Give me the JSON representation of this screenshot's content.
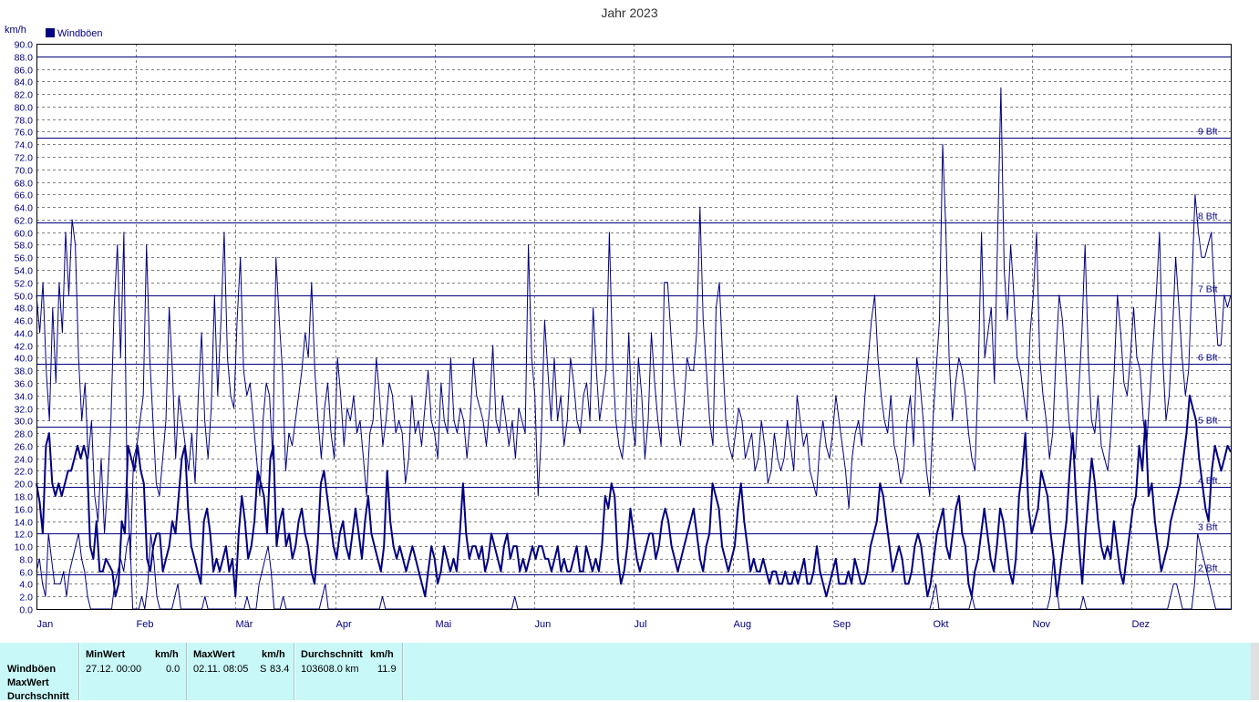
{
  "chart_data": {
    "type": "line",
    "title": "Jahr 2023",
    "ylabel": "km/h",
    "ylim": [
      0,
      90
    ],
    "ytick_step": 2,
    "grid": true,
    "legend": {
      "position": "top-left",
      "entries": [
        "Windböen"
      ]
    },
    "months": [
      "Jan",
      "Feb",
      "Mär",
      "Apr",
      "Mai",
      "Jun",
      "Jul",
      "Aug",
      "Sep",
      "Okt",
      "Nov",
      "Dez"
    ],
    "beaufort_lines": [
      {
        "label": "2 Bft",
        "value": 5.5
      },
      {
        "label": "3 Bft",
        "value": 12
      },
      {
        "label": "4 Bft",
        "value": 19.5
      },
      {
        "label": "5 Bft",
        "value": 29
      },
      {
        "label": "6 Bft",
        "value": 39
      },
      {
        "label": "7 Bft",
        "value": 50
      },
      {
        "label": "8 Bft",
        "value": 61.5
      },
      {
        "label": "9 Bft",
        "value": 75
      },
      {
        "label": "",
        "value": 88
      }
    ],
    "series": [
      {
        "name": "Windböen",
        "role": "max",
        "values": [
          50,
          44,
          52,
          38,
          30,
          48,
          36,
          52,
          44,
          60,
          50,
          62,
          58,
          40,
          30,
          36,
          24,
          30,
          18,
          14,
          24,
          12,
          20,
          30,
          48,
          58,
          40,
          60,
          20,
          8,
          24,
          26,
          30,
          34,
          58,
          40,
          30,
          20,
          18,
          24,
          30,
          48,
          38,
          24,
          34,
          30,
          26,
          22,
          28,
          20,
          34,
          44,
          30,
          24,
          32,
          50,
          34,
          46,
          60,
          40,
          34,
          32,
          46,
          56,
          38,
          34,
          36,
          30,
          24,
          18,
          30,
          36,
          34,
          24,
          56,
          46,
          38,
          22,
          28,
          26,
          30,
          34,
          38,
          44,
          40,
          52,
          38,
          30,
          24,
          32,
          36,
          28,
          24,
          40,
          34,
          26,
          32,
          30,
          34,
          28,
          30,
          24,
          18,
          28,
          30,
          40,
          34,
          26,
          30,
          36,
          34,
          28,
          30,
          28,
          20,
          24,
          34,
          28,
          30,
          26,
          32,
          38,
          30,
          28,
          24,
          36,
          30,
          28,
          40,
          30,
          28,
          32,
          30,
          24,
          30,
          40,
          34,
          32,
          30,
          26,
          32,
          42,
          30,
          28,
          34,
          30,
          26,
          30,
          24,
          32,
          30,
          28,
          58,
          40,
          34,
          18,
          28,
          46,
          38,
          30,
          40,
          30,
          34,
          26,
          30,
          40,
          36,
          30,
          28,
          34,
          36,
          30,
          48,
          38,
          30,
          34,
          38,
          60,
          40,
          30,
          26,
          24,
          30,
          44,
          30,
          26,
          40,
          34,
          24,
          30,
          44,
          36,
          30,
          26,
          52,
          52,
          44,
          36,
          30,
          26,
          32,
          40,
          38,
          38,
          44,
          64,
          46,
          38,
          30,
          26,
          48,
          52,
          40,
          30,
          26,
          24,
          28,
          32,
          30,
          24,
          26,
          28,
          22,
          24,
          30,
          26,
          20,
          22,
          28,
          24,
          22,
          24,
          30,
          26,
          22,
          34,
          30,
          26,
          28,
          22,
          20,
          18,
          26,
          30,
          26,
          24,
          28,
          34,
          30,
          26,
          22,
          16,
          24,
          28,
          30,
          26,
          34,
          40,
          46,
          50,
          40,
          34,
          30,
          28,
          34,
          26,
          24,
          20,
          22,
          30,
          34,
          26,
          40,
          36,
          30,
          22,
          18,
          30,
          38,
          46,
          74,
          60,
          40,
          30,
          36,
          40,
          38,
          34,
          28,
          24,
          22,
          38,
          60,
          40,
          44,
          48,
          36,
          60,
          83,
          54,
          46,
          58,
          50,
          40,
          38,
          34,
          30,
          44,
          50,
          60,
          40,
          34,
          30,
          24,
          28,
          40,
          50,
          46,
          38,
          30,
          26,
          24,
          34,
          44,
          58,
          40,
          30,
          28,
          34,
          26,
          24,
          22,
          28,
          38,
          50,
          44,
          36,
          34,
          40,
          48,
          40,
          38,
          30,
          26,
          34,
          42,
          50,
          60,
          40,
          30,
          34,
          44,
          56,
          48,
          40,
          34,
          38,
          52,
          66,
          60,
          56,
          56,
          58,
          60,
          50,
          42,
          42,
          50,
          48,
          50
        ]
      },
      {
        "name": "Windböen",
        "role": "mean",
        "values": [
          20,
          17,
          12,
          26,
          28,
          20,
          18,
          20,
          18,
          20,
          22,
          22,
          24,
          26,
          24,
          26,
          24,
          10,
          8,
          14,
          6,
          6,
          8,
          7,
          6,
          2,
          4,
          14,
          12,
          26,
          24,
          22,
          26,
          22,
          20,
          8,
          6,
          10,
          12,
          12,
          6,
          8,
          10,
          14,
          12,
          18,
          24,
          26,
          16,
          10,
          8,
          6,
          4,
          14,
          16,
          12,
          6,
          8,
          6,
          8,
          10,
          6,
          8,
          2,
          12,
          18,
          14,
          8,
          10,
          14,
          22,
          20,
          18,
          12,
          24,
          26,
          10,
          14,
          16,
          10,
          12,
          8,
          10,
          14,
          16,
          12,
          10,
          6,
          4,
          10,
          20,
          22,
          18,
          14,
          10,
          8,
          12,
          14,
          10,
          8,
          12,
          16,
          12,
          8,
          14,
          18,
          12,
          10,
          8,
          6,
          10,
          22,
          14,
          10,
          8,
          10,
          8,
          6,
          8,
          10,
          8,
          6,
          4,
          2,
          6,
          10,
          8,
          4,
          6,
          10,
          8,
          6,
          8,
          6,
          12,
          20,
          12,
          8,
          10,
          10,
          8,
          10,
          6,
          8,
          12,
          10,
          8,
          6,
          10,
          12,
          8,
          10,
          10,
          6,
          8,
          6,
          8,
          10,
          8,
          10,
          10,
          8,
          8,
          6,
          8,
          10,
          6,
          8,
          6,
          6,
          8,
          10,
          6,
          6,
          10,
          8,
          6,
          8,
          6,
          10,
          18,
          16,
          20,
          18,
          8,
          4,
          6,
          10,
          16,
          12,
          8,
          6,
          8,
          10,
          12,
          12,
          8,
          10,
          14,
          16,
          14,
          10,
          8,
          6,
          8,
          10,
          12,
          14,
          16,
          12,
          8,
          6,
          10,
          12,
          20,
          18,
          16,
          10,
          8,
          6,
          8,
          10,
          16,
          20,
          14,
          10,
          6,
          8,
          6,
          6,
          8,
          6,
          4,
          6,
          6,
          4,
          4,
          6,
          4,
          4,
          6,
          4,
          6,
          8,
          4,
          4,
          6,
          10,
          6,
          4,
          2,
          4,
          6,
          8,
          4,
          4,
          4,
          6,
          4,
          8,
          6,
          4,
          4,
          6,
          10,
          12,
          14,
          20,
          18,
          14,
          10,
          6,
          8,
          10,
          8,
          4,
          4,
          6,
          10,
          12,
          10,
          6,
          2,
          4,
          8,
          12,
          14,
          16,
          10,
          8,
          12,
          16,
          18,
          12,
          10,
          4,
          2,
          6,
          8,
          12,
          16,
          12,
          8,
          6,
          10,
          16,
          14,
          10,
          6,
          4,
          8,
          18,
          22,
          28,
          16,
          12,
          14,
          16,
          22,
          20,
          18,
          12,
          8,
          2,
          6,
          10,
          14,
          22,
          28,
          18,
          10,
          4,
          12,
          18,
          24,
          20,
          14,
          10,
          8,
          10,
          8,
          14,
          10,
          6,
          4,
          8,
          12,
          16,
          18,
          26,
          22,
          30,
          18,
          20,
          14,
          10,
          6,
          8,
          10,
          14,
          16,
          18,
          20,
          24,
          28,
          34,
          32,
          30,
          24,
          20,
          16,
          14,
          22,
          26,
          24,
          22,
          24,
          26,
          25
        ]
      },
      {
        "name": "Windböen",
        "role": "min",
        "values": [
          6,
          8,
          4,
          2,
          12,
          8,
          4,
          4,
          4,
          6,
          2,
          6,
          8,
          10,
          12,
          8,
          6,
          2,
          0,
          0,
          0,
          0,
          0,
          0,
          0,
          0,
          4,
          6,
          8,
          6,
          10,
          12,
          0,
          0,
          0,
          2,
          0,
          4,
          12,
          8,
          2,
          0,
          0,
          0,
          0,
          0,
          2,
          4,
          0,
          0,
          0,
          0,
          0,
          0,
          0,
          0,
          2,
          0,
          0,
          0,
          0,
          0,
          0,
          0,
          0,
          0,
          0,
          0,
          0,
          0,
          2,
          0,
          0,
          0,
          4,
          6,
          8,
          10,
          6,
          0,
          0,
          0,
          2,
          0,
          0,
          0,
          0,
          0,
          0,
          0,
          0,
          0,
          0,
          0,
          0,
          2,
          4,
          0,
          0,
          0,
          0,
          0,
          0,
          0,
          0,
          0,
          0,
          0,
          0,
          0,
          0,
          0,
          0,
          0,
          0,
          2,
          0,
          0,
          0,
          0,
          0,
          0,
          0,
          0,
          0,
          0,
          0,
          0,
          0,
          0,
          0,
          0,
          0,
          0,
          0,
          0,
          0,
          0,
          0,
          0,
          0,
          0,
          0,
          0,
          0,
          0,
          0,
          0,
          0,
          0,
          0,
          0,
          0,
          0,
          0,
          0,
          0,
          0,
          0,
          2,
          0,
          0,
          0,
          0,
          0,
          0,
          0,
          0,
          0,
          0,
          0,
          0,
          0,
          0,
          0,
          0,
          0,
          0,
          0,
          0,
          0,
          0,
          0,
          0,
          0,
          0,
          0,
          0,
          0,
          0,
          0,
          0,
          0,
          0,
          0,
          0,
          0,
          0,
          0,
          0,
          0,
          0,
          0,
          0,
          0,
          0,
          0,
          0,
          0,
          0,
          0,
          0,
          0,
          0,
          0,
          0,
          0,
          0,
          0,
          0,
          0,
          0,
          0,
          0,
          0,
          0,
          0,
          0,
          0,
          0,
          0,
          0,
          0,
          0,
          0,
          0,
          0,
          0,
          0,
          0,
          0,
          0,
          0,
          0,
          0,
          0,
          0,
          0,
          0,
          0,
          0,
          0,
          0,
          0,
          0,
          0,
          0,
          0,
          0,
          0,
          0,
          0,
          0,
          0,
          0,
          0,
          0,
          0,
          0,
          0,
          0,
          0,
          0,
          0,
          0,
          0,
          0,
          0,
          0,
          0,
          0,
          0,
          0,
          0,
          0,
          0,
          0,
          0,
          0,
          0,
          0,
          0,
          0,
          0,
          0,
          0,
          0,
          0,
          2,
          4,
          0,
          0,
          0,
          0,
          0,
          0,
          0,
          0,
          0,
          0,
          0,
          2,
          0,
          0,
          0,
          0,
          0,
          0,
          0,
          0,
          0,
          0,
          0,
          0,
          0,
          0,
          0,
          0,
          0,
          0,
          0,
          0,
          0,
          0,
          0,
          0,
          0,
          2,
          8,
          4,
          0,
          0,
          0,
          0,
          0,
          0,
          0,
          0,
          2,
          0,
          0,
          0,
          0,
          0,
          0,
          0,
          0,
          0,
          0,
          0,
          0,
          0,
          0,
          0,
          0,
          0,
          0,
          0,
          0,
          0,
          0,
          0,
          0,
          0,
          0,
          0,
          0,
          2,
          4,
          4,
          2,
          0,
          0,
          0,
          0,
          4,
          12,
          10,
          8,
          6,
          4,
          2,
          0,
          0,
          0,
          0,
          0,
          0
        ]
      }
    ]
  },
  "colors": {
    "line": "#000080",
    "grid": "#808080",
    "stats_bg": "#c8f8f8"
  },
  "stats": {
    "row_labels": [
      "Windböen",
      "MaxWert",
      "Durchschnitt"
    ],
    "min_header": "MinWert",
    "min_unit": "km/h",
    "max_header": "MaxWert",
    "max_unit": "km/h",
    "avg_header": "Durchschnitt",
    "avg_unit": "km/h",
    "min_time": "27.12.  00:00",
    "min_value": "0.0",
    "max_time": "02.11.  08:05",
    "max_dir": "S",
    "max_value": "83.4",
    "avg_distance": "103608.0 km",
    "avg_value": "11.9"
  }
}
